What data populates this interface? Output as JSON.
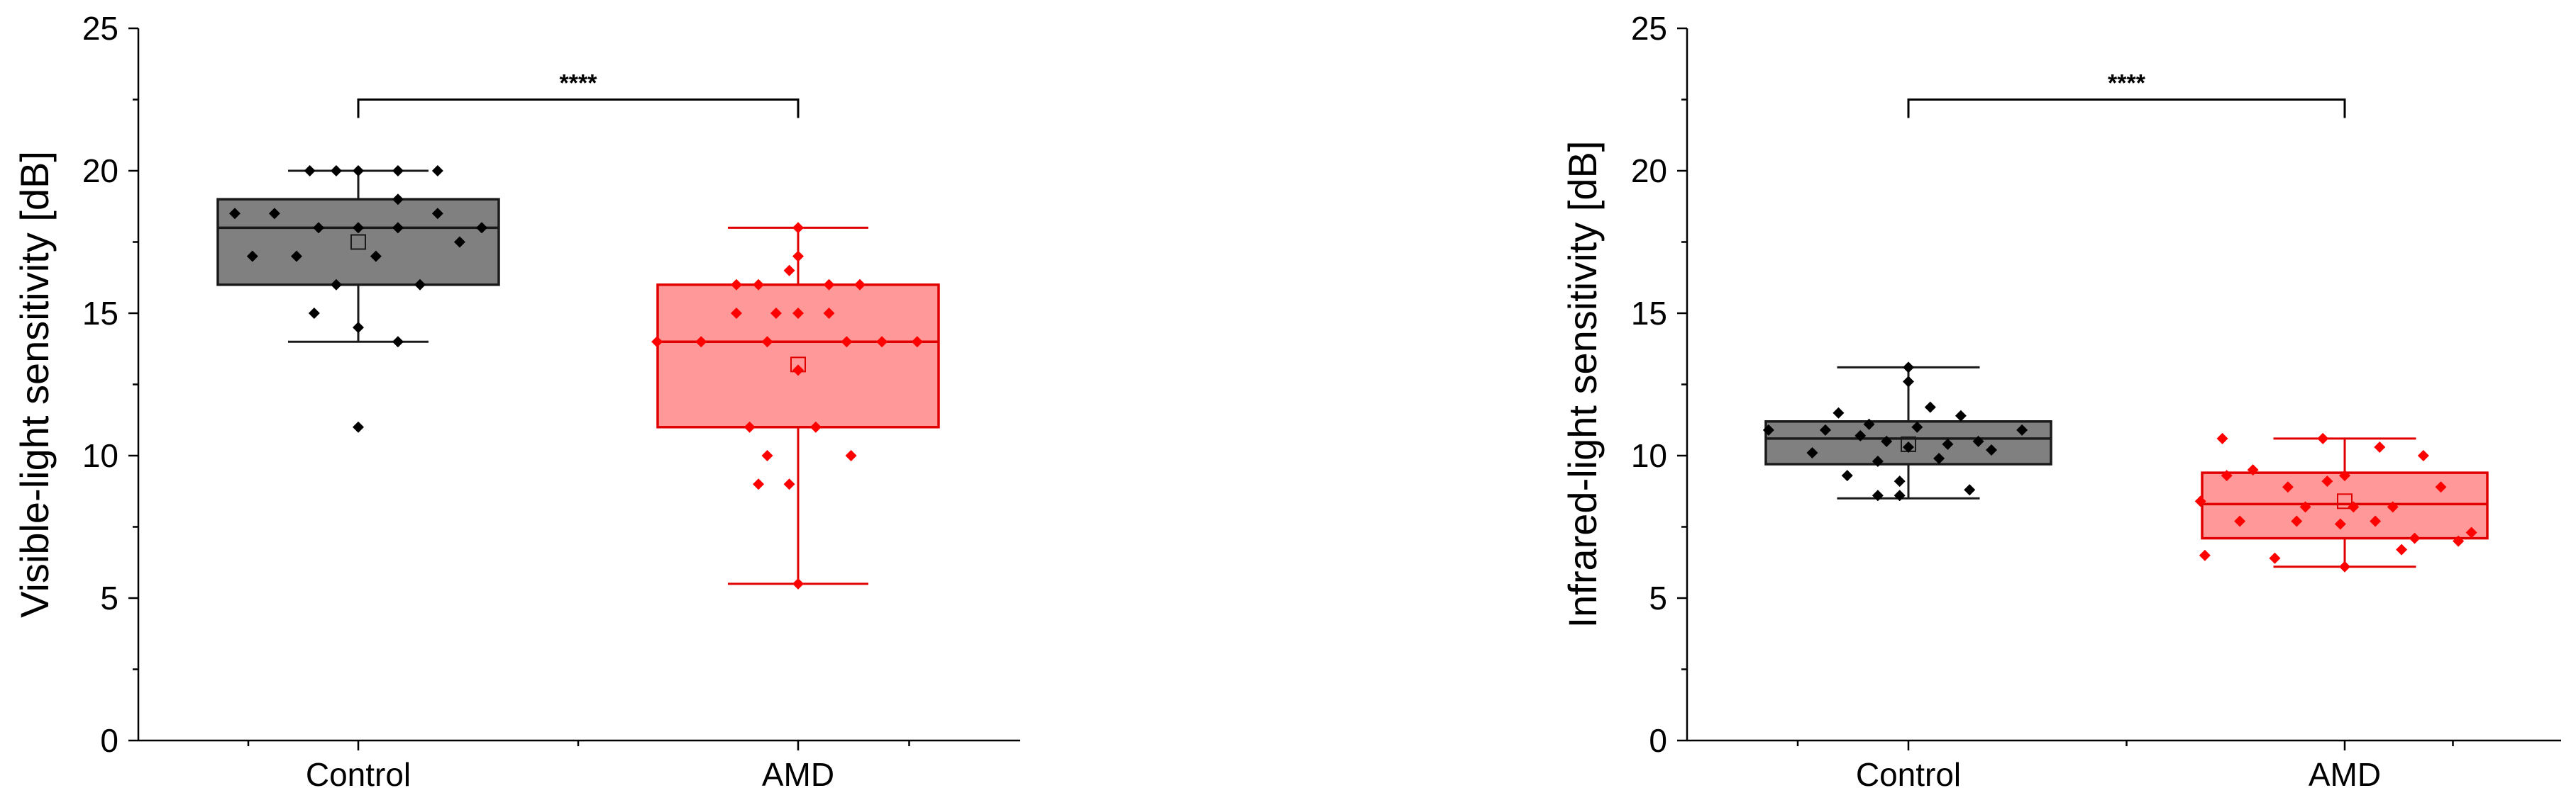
{
  "chart_data": [
    {
      "type": "box",
      "ylabel": "Visible-light sensitivity [dB]",
      "xlabel": "",
      "ylim": [
        0,
        25
      ],
      "yticks": [
        0,
        5,
        10,
        15,
        20,
        25
      ],
      "categories": [
        "Control",
        "AMD"
      ],
      "significance": {
        "label": "****",
        "between": [
          "Control",
          "AMD"
        ],
        "y": 22.5
      },
      "groups": [
        {
          "name": "Control",
          "color": "#000000",
          "fill": "#808080",
          "edge": "#1a1a1a",
          "q1": 16,
          "median": 18,
          "q3": 19,
          "whisker_low": 14,
          "whisker_high": 20,
          "mean": 17.5,
          "points": [
            {
              "dx": -0.28,
              "y": 18.5
            },
            {
              "dx": -0.24,
              "y": 17
            },
            {
              "dx": -0.19,
              "y": 18.5
            },
            {
              "dx": -0.14,
              "y": 17
            },
            {
              "dx": -0.11,
              "y": 20
            },
            {
              "dx": -0.09,
              "y": 18
            },
            {
              "dx": -0.1,
              "y": 15
            },
            {
              "dx": -0.05,
              "y": 20
            },
            {
              "dx": -0.05,
              "y": 16
            },
            {
              "dx": 0.0,
              "y": 20
            },
            {
              "dx": 0.0,
              "y": 18
            },
            {
              "dx": 0.0,
              "y": 14.5
            },
            {
              "dx": 0.0,
              "y": 11
            },
            {
              "dx": 0.04,
              "y": 17
            },
            {
              "dx": 0.09,
              "y": 20
            },
            {
              "dx": 0.09,
              "y": 18
            },
            {
              "dx": 0.09,
              "y": 19
            },
            {
              "dx": 0.09,
              "y": 14
            },
            {
              "dx": 0.14,
              "y": 16
            },
            {
              "dx": 0.18,
              "y": 20
            },
            {
              "dx": 0.18,
              "y": 18.5
            },
            {
              "dx": 0.23,
              "y": 17.5
            },
            {
              "dx": 0.28,
              "y": 18
            }
          ]
        },
        {
          "name": "AMD",
          "color": "#ff0000",
          "fill": "#ff9999",
          "edge": "#e00000",
          "q1": 11,
          "median": 14,
          "q3": 16,
          "whisker_low": 5.5,
          "whisker_high": 18,
          "mean": 13.2,
          "points": [
            {
              "dx": -0.32,
              "y": 14
            },
            {
              "dx": -0.22,
              "y": 14
            },
            {
              "dx": -0.14,
              "y": 16
            },
            {
              "dx": -0.14,
              "y": 15
            },
            {
              "dx": -0.11,
              "y": 11
            },
            {
              "dx": -0.09,
              "y": 16
            },
            {
              "dx": -0.09,
              "y": 9
            },
            {
              "dx": -0.07,
              "y": 10
            },
            {
              "dx": -0.07,
              "y": 14
            },
            {
              "dx": -0.05,
              "y": 15
            },
            {
              "dx": -0.02,
              "y": 16.5
            },
            {
              "dx": -0.02,
              "y": 9
            },
            {
              "dx": 0.0,
              "y": 15
            },
            {
              "dx": 0.0,
              "y": 17
            },
            {
              "dx": 0.0,
              "y": 18
            },
            {
              "dx": 0.0,
              "y": 13
            },
            {
              "dx": 0.0,
              "y": 5.5
            },
            {
              "dx": 0.04,
              "y": 11
            },
            {
              "dx": 0.07,
              "y": 15
            },
            {
              "dx": 0.07,
              "y": 16
            },
            {
              "dx": 0.11,
              "y": 14
            },
            {
              "dx": 0.12,
              "y": 10
            },
            {
              "dx": 0.14,
              "y": 16
            },
            {
              "dx": 0.19,
              "y": 14
            },
            {
              "dx": 0.27,
              "y": 14
            }
          ]
        }
      ]
    },
    {
      "type": "box",
      "ylabel": "Infrared-light sensitivity [dB]",
      "xlabel": "",
      "ylim": [
        0,
        25
      ],
      "yticks": [
        0,
        5,
        10,
        15,
        20,
        25
      ],
      "categories": [
        "Control",
        "AMD"
      ],
      "significance": {
        "label": "****",
        "between": [
          "Control",
          "AMD"
        ],
        "y": 22.5
      },
      "groups": [
        {
          "name": "Control",
          "color": "#000000",
          "fill": "#808080",
          "edge": "#1a1a1a",
          "q1": 9.7,
          "median": 10.6,
          "q3": 11.2,
          "whisker_low": 8.5,
          "whisker_high": 13.1,
          "mean": 10.4,
          "points": [
            {
              "dx": -0.32,
              "y": 10.9
            },
            {
              "dx": -0.22,
              "y": 10.1
            },
            {
              "dx": -0.19,
              "y": 10.9
            },
            {
              "dx": -0.16,
              "y": 11.5
            },
            {
              "dx": -0.14,
              "y": 9.3
            },
            {
              "dx": -0.11,
              "y": 10.7
            },
            {
              "dx": -0.09,
              "y": 11.1
            },
            {
              "dx": -0.07,
              "y": 8.6
            },
            {
              "dx": -0.07,
              "y": 9.8
            },
            {
              "dx": -0.05,
              "y": 10.5
            },
            {
              "dx": -0.02,
              "y": 8.6
            },
            {
              "dx": -0.02,
              "y": 9.1
            },
            {
              "dx": 0.0,
              "y": 13.1
            },
            {
              "dx": 0.0,
              "y": 12.6
            },
            {
              "dx": 0.0,
              "y": 10.3
            },
            {
              "dx": 0.02,
              "y": 11.0
            },
            {
              "dx": 0.05,
              "y": 11.7
            },
            {
              "dx": 0.07,
              "y": 9.9
            },
            {
              "dx": 0.09,
              "y": 10.4
            },
            {
              "dx": 0.12,
              "y": 11.4
            },
            {
              "dx": 0.14,
              "y": 8.8
            },
            {
              "dx": 0.16,
              "y": 10.5
            },
            {
              "dx": 0.19,
              "y": 10.2
            },
            {
              "dx": 0.26,
              "y": 10.9
            }
          ]
        },
        {
          "name": "AMD",
          "color": "#ff0000",
          "fill": "#ff9999",
          "edge": "#e00000",
          "q1": 7.1,
          "median": 8.3,
          "q3": 9.4,
          "whisker_low": 6.1,
          "whisker_high": 10.6,
          "mean": 8.4,
          "points": [
            {
              "dx": -0.28,
              "y": 10.6
            },
            {
              "dx": -0.32,
              "y": 6.5
            },
            {
              "dx": -0.33,
              "y": 8.4
            },
            {
              "dx": -0.27,
              "y": 9.3
            },
            {
              "dx": -0.24,
              "y": 7.7
            },
            {
              "dx": -0.21,
              "y": 9.5
            },
            {
              "dx": -0.16,
              "y": 6.4
            },
            {
              "dx": -0.13,
              "y": 8.9
            },
            {
              "dx": -0.11,
              "y": 7.7
            },
            {
              "dx": -0.09,
              "y": 8.2
            },
            {
              "dx": -0.05,
              "y": 10.6
            },
            {
              "dx": -0.04,
              "y": 9.1
            },
            {
              "dx": -0.01,
              "y": 7.6
            },
            {
              "dx": 0.0,
              "y": 6.1
            },
            {
              "dx": 0.0,
              "y": 9.3
            },
            {
              "dx": 0.02,
              "y": 8.2
            },
            {
              "dx": 0.07,
              "y": 7.7
            },
            {
              "dx": 0.08,
              "y": 10.3
            },
            {
              "dx": 0.11,
              "y": 8.2
            },
            {
              "dx": 0.13,
              "y": 6.7
            },
            {
              "dx": 0.16,
              "y": 7.1
            },
            {
              "dx": 0.18,
              "y": 10.0
            },
            {
              "dx": 0.22,
              "y": 8.9
            },
            {
              "dx": 0.26,
              "y": 7.0
            },
            {
              "dx": 0.29,
              "y": 7.3
            }
          ]
        }
      ]
    }
  ]
}
